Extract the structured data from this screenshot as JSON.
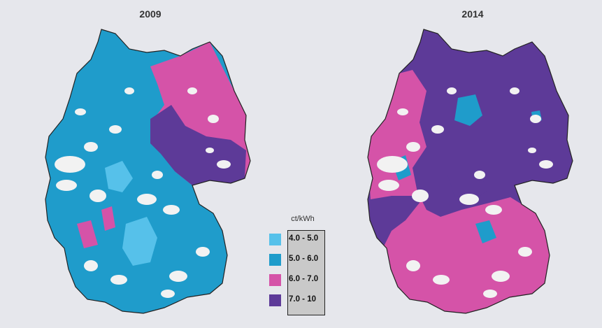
{
  "maps": [
    {
      "title": "2009",
      "dominant": "5.0 - 6.0",
      "east": "6.0 - 7.0"
    },
    {
      "title": "2014",
      "dominant": "7.0 - 10",
      "west": "6.0 - 7.0"
    }
  ],
  "legend": {
    "unit": "ct/kWh",
    "items": [
      {
        "label": "4.0 - 5.0",
        "color": "#56c1ea"
      },
      {
        "label": "5.0 - 6.0",
        "color": "#1f9ccb"
      },
      {
        "label": "6.0 - 7.0",
        "color": "#d553a8"
      },
      {
        "label": "7.0 - 10",
        "color": "#5d3a98"
      }
    ]
  },
  "colors": {
    "background": "#e6e7ec",
    "gap": "#f2f2f2"
  }
}
